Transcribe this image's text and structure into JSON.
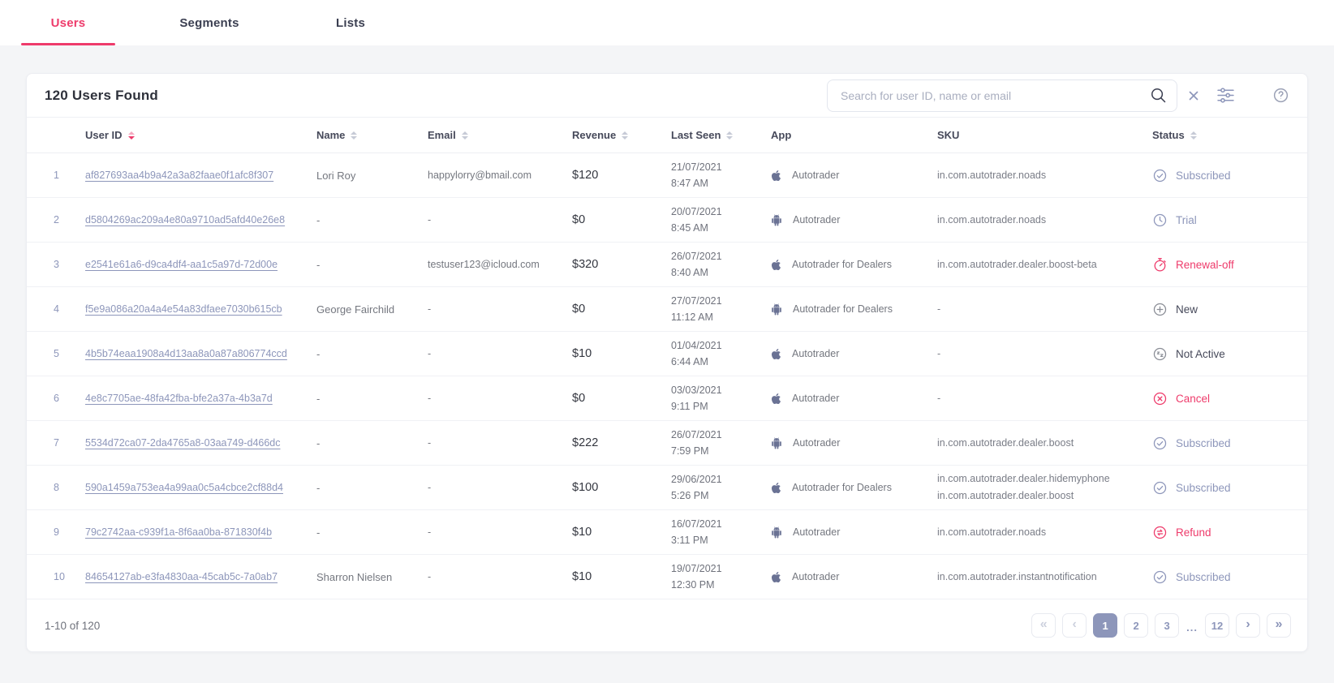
{
  "colors": {
    "accent_pink": "#ee3b6b",
    "slate_blue": "#8d96ba",
    "dark_navy": "#3b3f51",
    "text_gray": "#74777f"
  },
  "tabs": [
    {
      "label": "Users",
      "active": true
    },
    {
      "label": "Segments",
      "active": false
    },
    {
      "label": "Lists",
      "active": false
    }
  ],
  "header": {
    "results_count": "120 Users Found",
    "search_placeholder": "Search for user ID, name or email",
    "icons": [
      "search-icon",
      "clear-icon",
      "filter-sliders-icon",
      "help-icon"
    ]
  },
  "table": {
    "columns": [
      {
        "label": "User ID",
        "sortable": true,
        "sort_state": "desc"
      },
      {
        "label": "Name",
        "sortable": true,
        "sort_state": "none"
      },
      {
        "label": "Email",
        "sortable": true,
        "sort_state": "none"
      },
      {
        "label": "Revenue",
        "sortable": true,
        "sort_state": "none"
      },
      {
        "label": "Last Seen",
        "sortable": true,
        "sort_state": "none"
      },
      {
        "label": "App",
        "sortable": false
      },
      {
        "label": "SKU",
        "sortable": false
      },
      {
        "label": "Status",
        "sortable": true,
        "sort_state": "none"
      }
    ],
    "rows": [
      {
        "index": "1",
        "user_id": "af827693aa4b9a42a3a82faae0f1afc8f307",
        "name": "Lori Roy",
        "email": "happylorry@bmail.com",
        "revenue": "$120",
        "last_seen_date": "21/07/2021",
        "last_seen_time": "8:47 AM",
        "platform": "apple",
        "app": "Autotrader",
        "sku": [
          "in.com.autotrader.noads"
        ],
        "status": {
          "label": "Subscribed",
          "icon": "check-circle-icon",
          "variant": "blue"
        }
      },
      {
        "index": "2",
        "user_id": "d5804269ac209a4e80a9710ad5afd40e26e8",
        "name": "-",
        "email": "-",
        "revenue": "$0",
        "last_seen_date": "20/07/2021",
        "last_seen_time": "8:45 AM",
        "platform": "android",
        "app": "Autotrader",
        "sku": [
          "in.com.autotrader.noads"
        ],
        "status": {
          "label": "Trial",
          "icon": "clock-circle-icon",
          "variant": "blue"
        }
      },
      {
        "index": "3",
        "user_id": "e2541e61a6-d9ca4df4-aa1c5a97d-72d00e",
        "name": "-",
        "email": "testuser123@icloud.com",
        "revenue": "$320",
        "last_seen_date": "26/07/2021",
        "last_seen_time": "8:40 AM",
        "platform": "apple",
        "app": "Autotrader for Dealers",
        "sku": [
          "in.com.autotrader.dealer.boost-beta"
        ],
        "status": {
          "label": "Renewal-off",
          "icon": "timer-circle-icon",
          "variant": "pink"
        }
      },
      {
        "index": "4",
        "user_id": "f5e9a086a20a4a4e54a83dfaee7030b615cb",
        "name": "George Fairchild",
        "email": "-",
        "revenue": "$0",
        "last_seen_date": "27/07/2021",
        "last_seen_time": "11:12 AM",
        "platform": "android",
        "app": "Autotrader for Dealers",
        "sku": [
          "-"
        ],
        "status": {
          "label": "New",
          "icon": "plus-circle-icon",
          "variant": "dark"
        }
      },
      {
        "index": "5",
        "user_id": "4b5b74eaa1908a4d13aa8a0a87a806774ccd",
        "name": "-",
        "email": "-",
        "revenue": "$10",
        "last_seen_date": "01/04/2021",
        "last_seen_time": "6:44 AM",
        "platform": "apple",
        "app": "Autotrader",
        "sku": [
          "-"
        ],
        "status": {
          "label": "Not Active",
          "icon": "sleep-circle-icon",
          "variant": "dark"
        }
      },
      {
        "index": "6",
        "user_id": "4e8c7705ae-48fa42fba-bfe2a37a-4b3a7d",
        "name": "-",
        "email": "-",
        "revenue": "$0",
        "last_seen_date": "03/03/2021",
        "last_seen_time": "9:11 PM",
        "platform": "apple",
        "app": "Autotrader",
        "sku": [
          "-"
        ],
        "status": {
          "label": "Cancel",
          "icon": "x-circle-icon",
          "variant": "pink"
        }
      },
      {
        "index": "7",
        "user_id": "5534d72ca07-2da4765a8-03aa749-d466dc",
        "name": "-",
        "email": "-",
        "revenue": "$222",
        "last_seen_date": "26/07/2021",
        "last_seen_time": "7:59 PM",
        "platform": "android",
        "app": "Autotrader",
        "sku": [
          "in.com.autotrader.dealer.boost"
        ],
        "status": {
          "label": "Subscribed",
          "icon": "check-circle-icon",
          "variant": "blue"
        }
      },
      {
        "index": "8",
        "user_id": "590a1459a753ea4a99aa0c5a4cbce2cf88d4",
        "name": "-",
        "email": "-",
        "revenue": "$100",
        "last_seen_date": "29/06/2021",
        "last_seen_time": "5:26 PM",
        "platform": "apple",
        "app": "Autotrader for Dealers",
        "sku": [
          "in.com.autotrader.dealer.hidemyphone",
          "in.com.autotrader.dealer.boost"
        ],
        "status": {
          "label": "Subscribed",
          "icon": "check-circle-icon",
          "variant": "blue"
        }
      },
      {
        "index": "9",
        "user_id": "79c2742aa-c939f1a-8f6aa0ba-871830f4b",
        "name": "-",
        "email": "-",
        "revenue": "$10",
        "last_seen_date": "16/07/2021",
        "last_seen_time": "3:11 PM",
        "platform": "android",
        "app": "Autotrader",
        "sku": [
          "in.com.autotrader.noads"
        ],
        "status": {
          "label": "Refund",
          "icon": "refund-circle-icon",
          "variant": "pink"
        }
      },
      {
        "index": "10",
        "user_id": "84654127ab-e3fa4830aa-45cab5c-7a0ab7",
        "name": "Sharron Nielsen",
        "email": "-",
        "revenue": "$10",
        "last_seen_date": "19/07/2021",
        "last_seen_time": "12:30 PM",
        "platform": "apple",
        "app": "Autotrader",
        "sku": [
          "in.com.autotrader.instantnotification"
        ],
        "status": {
          "label": "Subscribed",
          "icon": "check-circle-icon",
          "variant": "blue"
        }
      }
    ]
  },
  "footer": {
    "range": "1-10 of 120",
    "pager": [
      {
        "label": "«",
        "kind": "first",
        "disabled": true
      },
      {
        "label": "‹",
        "kind": "prev",
        "disabled": true
      },
      {
        "label": "1",
        "kind": "page",
        "active": true
      },
      {
        "label": "2",
        "kind": "page"
      },
      {
        "label": "3",
        "kind": "page"
      },
      {
        "label": "...",
        "kind": "ellipsis"
      },
      {
        "label": "12",
        "kind": "page"
      },
      {
        "label": "›",
        "kind": "next"
      },
      {
        "label": "»",
        "kind": "last"
      }
    ]
  }
}
